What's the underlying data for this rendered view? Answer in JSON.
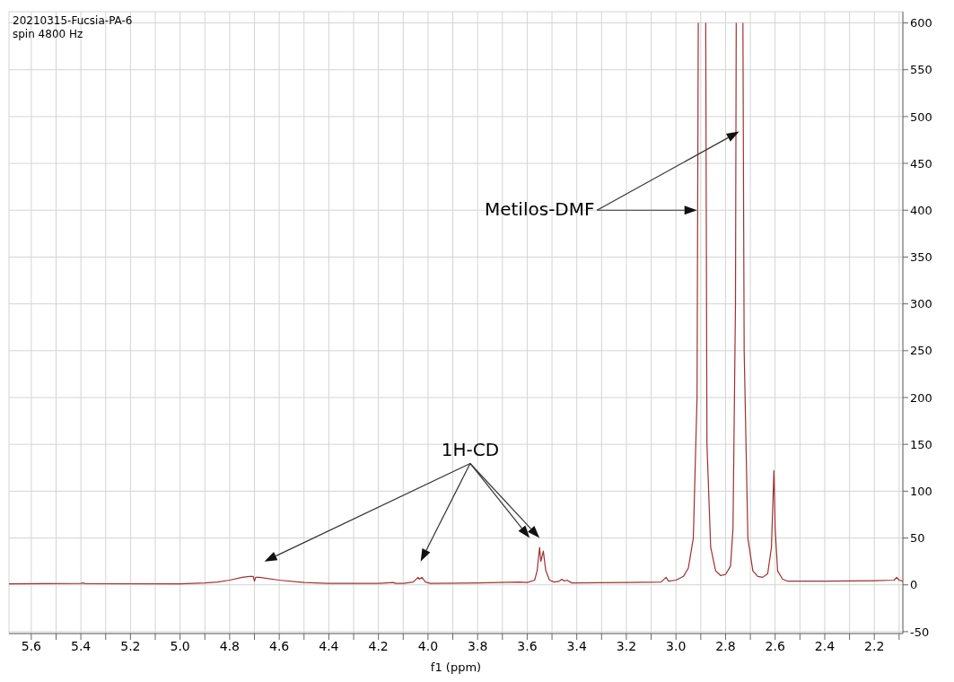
{
  "chart_data": {
    "type": "line",
    "title": "20210315-Fucsia-PA-6",
    "subtitle": "spin 4800 Hz",
    "xlabel": "f1 (ppm)",
    "annotations": [
      "Metilos-DMF",
      "1H-CD"
    ],
    "xlim": [
      5.69,
      2.085
    ],
    "xticks": [
      5.6,
      {
        "value": 5.5,
        "label": null
      },
      5.4,
      {
        "value": 5.3,
        "label": null
      },
      5.2,
      {
        "value": 5.1,
        "label": null
      },
      {
        "value": 5,
        "label": "5.0"
      },
      {
        "value": 4.9,
        "label": null
      },
      4.8,
      {
        "value": 4.7,
        "label": null
      },
      4.6,
      {
        "value": 4.5,
        "label": null
      },
      4.4,
      {
        "value": 4.3,
        "label": null
      },
      4.2,
      {
        "value": 4.1,
        "label": null
      },
      {
        "value": 4,
        "label": "4.0"
      },
      {
        "value": 3.9,
        "label": null
      },
      3.8,
      {
        "value": 3.7,
        "label": null
      },
      3.6,
      {
        "value": 3.5,
        "label": null
      },
      3.4,
      {
        "value": 3.3,
        "label": null
      },
      3.2,
      {
        "value": 3.1,
        "label": null
      },
      {
        "value": 3,
        "label": "3.0"
      },
      {
        "value": 2.9,
        "label": null
      },
      2.8,
      {
        "value": 2.7,
        "label": null
      },
      2.6,
      {
        "value": 2.5,
        "label": null
      },
      2.4,
      {
        "value": 2.3,
        "label": null
      },
      2.2,
      {
        "value": 2.1,
        "label": null
      }
    ],
    "ylim": [
      -52,
      612
    ],
    "yticks": [
      -50,
      0,
      50,
      100,
      150,
      200,
      250,
      300,
      350,
      400,
      450,
      500,
      550,
      600
    ],
    "grid": true,
    "legend": false,
    "marker": "none",
    "line_style": "solid",
    "series": [
      {
        "color": "#a03030",
        "x": [
          5.69,
          5.4,
          5.39,
          5.38,
          5.0,
          4.9,
          4.85,
          4.8,
          4.75,
          4.72,
          4.705,
          4.7,
          4.695,
          4.68,
          4.6,
          4.5,
          4.4,
          4.2,
          4.14,
          4.13,
          4.1,
          4.06,
          4.04,
          4.035,
          4.025,
          4.01,
          3.99,
          3.8,
          3.63,
          3.6,
          3.57,
          3.56,
          3.55,
          3.545,
          3.535,
          3.525,
          3.51,
          3.49,
          3.47,
          3.46,
          3.45,
          3.44,
          3.42,
          3.2,
          3.06,
          3.04,
          3.03,
          3.0,
          2.97,
          2.95,
          2.93,
          2.915,
          2.91,
          2.905,
          2.895,
          2.885,
          2.88,
          2.875,
          2.86,
          2.84,
          2.82,
          2.8,
          2.78,
          2.77,
          2.76,
          2.757,
          2.755,
          2.74,
          2.735,
          2.73,
          2.725,
          2.71,
          2.69,
          2.67,
          2.65,
          2.63,
          2.615,
          2.605,
          2.6,
          2.59,
          2.57,
          2.55,
          2.4,
          2.2,
          2.12,
          2.11,
          2.1,
          2.085
        ],
        "values": [
          1,
          1.5,
          2,
          1.2,
          1,
          2,
          3,
          5,
          8,
          9,
          9,
          4,
          8,
          8,
          5,
          2.5,
          1.5,
          1.5,
          2.5,
          1.5,
          1.5,
          3,
          8,
          6,
          8,
          3,
          1.5,
          2,
          3,
          2.5,
          5,
          15,
          40,
          25,
          36,
          15,
          5,
          3,
          4,
          6,
          4,
          5,
          2,
          2.5,
          3,
          8,
          4,
          5,
          9,
          18,
          50,
          200,
          600,
          null,
          null,
          null,
          600,
          150,
          40,
          15,
          10,
          11,
          20,
          60,
          300,
          600,
          null,
          null,
          null,
          600,
          250,
          50,
          15,
          9,
          8,
          12,
          40,
          122,
          60,
          15,
          6,
          4,
          4,
          4.5,
          5,
          8,
          5,
          4
        ]
      }
    ]
  }
}
